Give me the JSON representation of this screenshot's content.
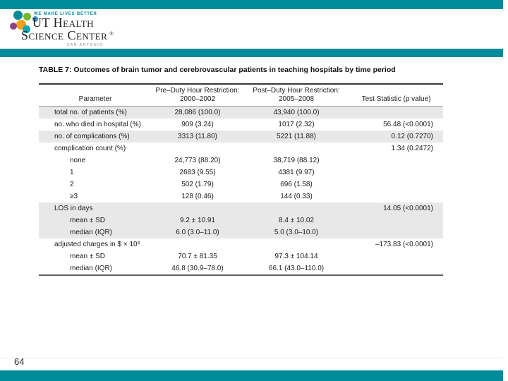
{
  "logo": {
    "tagline": "WE MAKE LIVES BETTER",
    "line1": "UT Health",
    "line2": "Science Center",
    "registered": "®",
    "city": "San Antonio"
  },
  "colors": {
    "teal_bar": "#008b9a",
    "row_shade": "#e8e8e8"
  },
  "table": {
    "title": "TABLE 7: Outcomes of brain tumor and cerebrovascular patients in teaching hospitals by time period",
    "columns": {
      "parameter": "Parameter",
      "pre_line1": "Pre–Duty Hour Restriction:",
      "pre_line2": "2000–2002",
      "post_line1": "Post–Duty Hour Restriction:",
      "post_line2": "2005–2008",
      "stat": "Test Statistic (p value)"
    },
    "rows": [
      {
        "param": "total no. of patients (%)",
        "pre": "28,086 (100.0)",
        "post": "43,940 (100.0)",
        "stat": "",
        "indent": 0,
        "shaded": true
      },
      {
        "param": "no. who died in hospital (%)",
        "pre": "909 (3.24)",
        "post": "1017 (2.32)",
        "stat": "56.48 (<0.0001)",
        "indent": 0,
        "shaded": false
      },
      {
        "param": "no. of complications (%)",
        "pre": "3313 (11.80)",
        "post": "5221 (11.88)",
        "stat": "0.12 (0.7270)",
        "indent": 0,
        "shaded": true
      },
      {
        "param": "complication count (%)",
        "pre": "",
        "post": "",
        "stat": "1.34 (0.2472)",
        "indent": 0,
        "shaded": false
      },
      {
        "param": "none",
        "pre": "24,773 (88.20)",
        "post": "38,719 (88.12)",
        "stat": "",
        "indent": 1,
        "shaded": false
      },
      {
        "param": "1",
        "pre": "2683 (9.55)",
        "post": "4381 (9.97)",
        "stat": "",
        "indent": 1,
        "shaded": false
      },
      {
        "param": "2",
        "pre": "502 (1.79)",
        "post": "696 (1.58)",
        "stat": "",
        "indent": 1,
        "shaded": false
      },
      {
        "param": "≥3",
        "pre": "128 (0.46)",
        "post": "144 (0.33)",
        "stat": "",
        "indent": 1,
        "shaded": false
      },
      {
        "param": "LOS in days",
        "pre": "",
        "post": "",
        "stat": "14.05 (<0.0001)",
        "indent": 0,
        "shaded": true
      },
      {
        "param": "mean ± SD",
        "pre": "9.2 ± 10.91",
        "post": "8.4 ± 10.02",
        "stat": "",
        "indent": 1,
        "shaded": true
      },
      {
        "param": "median (IQR)",
        "pre": "6.0 (3.0–11.0)",
        "post": "5.0 (3.0–10.0)",
        "stat": "",
        "indent": 1,
        "shaded": true
      },
      {
        "param": "adjusted charges in $ × 10³",
        "pre": "",
        "post": "",
        "stat": "–173.83 (<0.0001)",
        "indent": 0,
        "shaded": false
      },
      {
        "param": "mean ± SD",
        "pre": "70.7 ± 81.35",
        "post": "97.3 ± 104.14",
        "stat": "",
        "indent": 1,
        "shaded": false
      },
      {
        "param": "median (IQR)",
        "pre": "46.8 (30.9–78.0)",
        "post": "66.1 (43.0–110.0)",
        "stat": "",
        "indent": 1,
        "shaded": false
      }
    ]
  },
  "footer": {
    "page_number": "64"
  }
}
